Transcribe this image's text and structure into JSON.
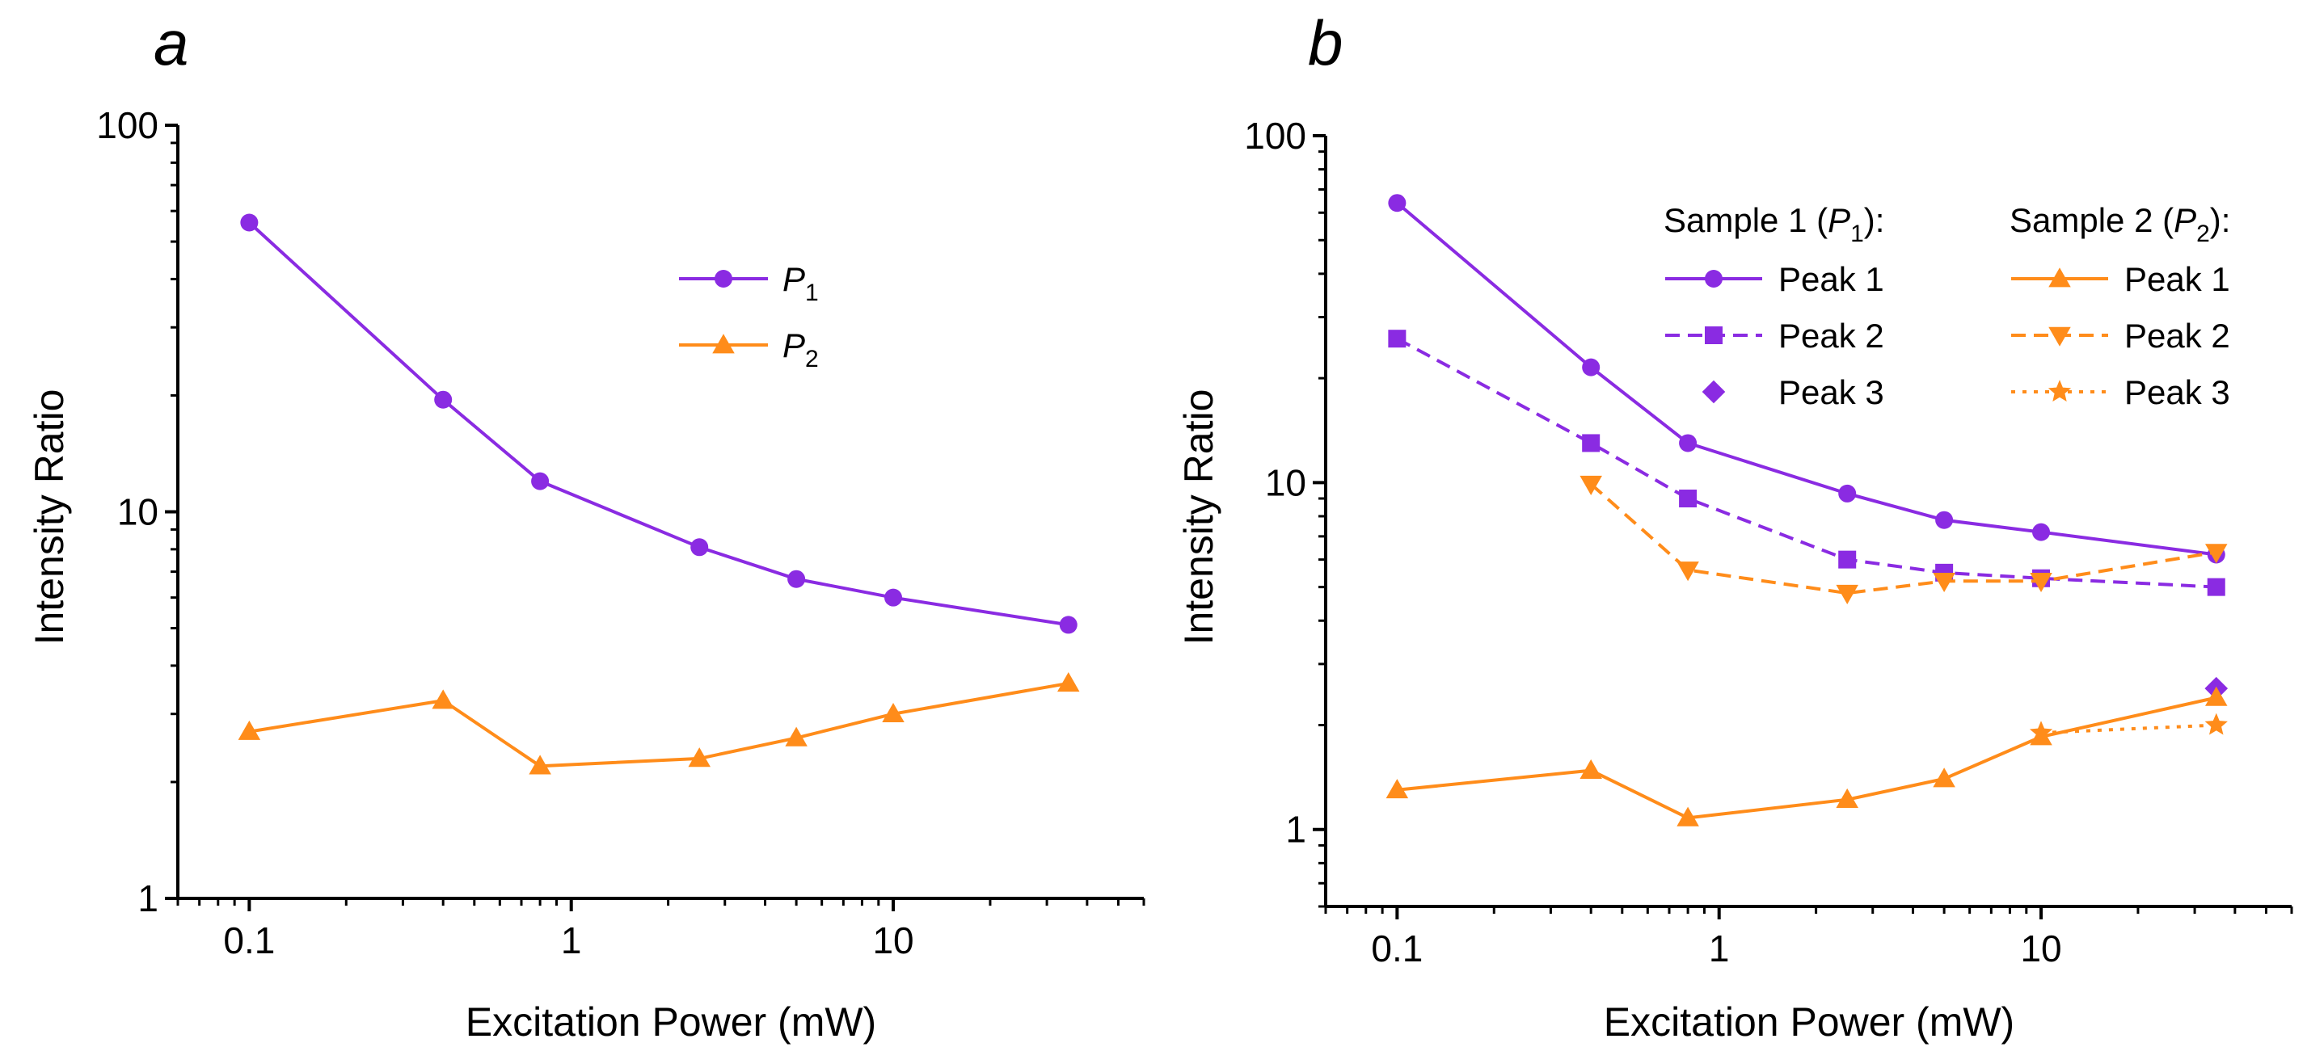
{
  "chart_data": [
    {
      "type": "line",
      "panel_label": "a",
      "xlabel": "Excitation Power (mW)",
      "ylabel": "Intensity Ratio",
      "xscale": "log",
      "yscale": "log",
      "xlim": [
        0.06,
        60
      ],
      "ylim": [
        1,
        100
      ],
      "xticks": [
        "0.1",
        "1",
        "10"
      ],
      "yticks": [
        "1",
        "10",
        "100"
      ],
      "legend_position": "top-right",
      "series": [
        {
          "name": "P",
          "subscript": "1",
          "color": "#8a2be2",
          "marker": "circle",
          "dash": "solid",
          "x": [
            0.1,
            0.4,
            0.8,
            2.5,
            5,
            10,
            35
          ],
          "y": [
            56,
            19.5,
            12,
            8.1,
            6.7,
            6.0,
            5.1
          ]
        },
        {
          "name": "P",
          "subscript": "2",
          "color": "#ff8c1a",
          "marker": "triangle-up",
          "dash": "solid",
          "x": [
            0.1,
            0.4,
            0.8,
            2.5,
            5,
            10,
            35
          ],
          "y": [
            2.7,
            3.25,
            2.2,
            2.3,
            2.6,
            3.0,
            3.6
          ]
        }
      ]
    },
    {
      "type": "line",
      "panel_label": "b",
      "xlabel": "Excitation Power (mW)",
      "ylabel": "Intensity Ratio",
      "xscale": "log",
      "yscale": "log",
      "xlim": [
        0.06,
        60
      ],
      "ylim": [
        0.6,
        100
      ],
      "xticks": [
        "0.1",
        "1",
        "10"
      ],
      "yticks": [
        "1",
        "10",
        "100"
      ],
      "legend_position": "top-right",
      "legend_groups": [
        {
          "title_main": "Sample 1 (",
          "title_sym": "P",
          "title_sub": "1",
          "title_end": "):"
        },
        {
          "title_main": "Sample 2 (",
          "title_sym": "P",
          "title_sub": "2",
          "title_end": "):"
        }
      ],
      "series": [
        {
          "name": "Peak 1",
          "group": 0,
          "color": "#8a2be2",
          "marker": "circle",
          "dash": "solid",
          "x": [
            0.1,
            0.4,
            0.8,
            2.5,
            5,
            10,
            35
          ],
          "y": [
            64,
            21.5,
            13,
            9.3,
            7.8,
            7.2,
            6.2
          ]
        },
        {
          "name": "Peak 2",
          "group": 0,
          "color": "#8a2be2",
          "marker": "square",
          "dash": "dashed",
          "x": [
            0.1,
            0.4,
            0.8,
            2.5,
            5,
            10,
            35
          ],
          "y": [
            26,
            13,
            9.0,
            6.0,
            5.5,
            5.3,
            5.0
          ]
        },
        {
          "name": "Peak 3",
          "group": 0,
          "color": "#8a2be2",
          "marker": "diamond",
          "dash": "none",
          "x": [
            35
          ],
          "y": [
            2.55
          ]
        },
        {
          "name": "Peak 1",
          "group": 1,
          "color": "#ff8c1a",
          "marker": "triangle-up",
          "dash": "solid",
          "x": [
            0.1,
            0.4,
            0.8,
            2.5,
            5,
            10,
            35
          ],
          "y": [
            1.3,
            1.48,
            1.08,
            1.22,
            1.4,
            1.85,
            2.4
          ]
        },
        {
          "name": "Peak 2",
          "group": 1,
          "color": "#ff8c1a",
          "marker": "triangle-down",
          "dash": "dashed",
          "x": [
            0.4,
            0.8,
            2.5,
            5,
            10,
            35
          ],
          "y": [
            9.9,
            5.6,
            4.8,
            5.2,
            5.2,
            6.3
          ]
        },
        {
          "name": "Peak 3",
          "group": 1,
          "color": "#ff8c1a",
          "marker": "star",
          "dash": "dotted",
          "x": [
            10,
            35
          ],
          "y": [
            1.9,
            2.0
          ]
        }
      ]
    }
  ]
}
